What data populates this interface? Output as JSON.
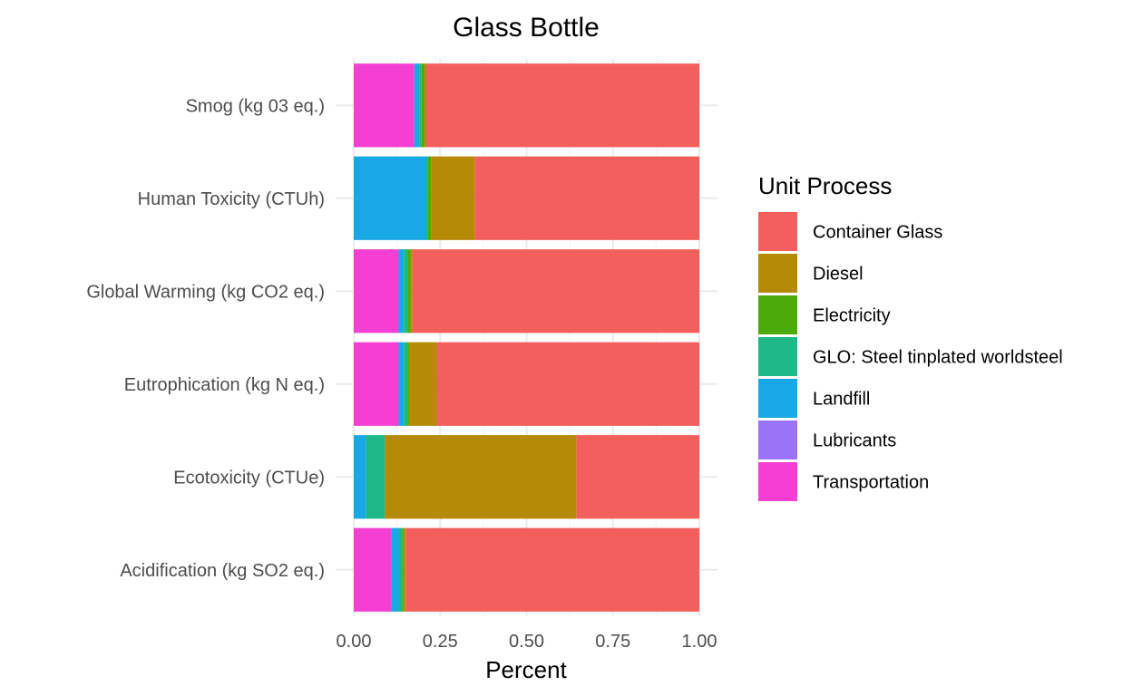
{
  "chart_data": {
    "type": "bar",
    "orientation": "horizontal",
    "stacked": true,
    "title": "Glass Bottle",
    "xlabel": "Percent",
    "ylabel": "",
    "xlim": [
      0,
      1
    ],
    "x_ticks": [
      "0.00",
      "0.25",
      "0.50",
      "0.75",
      "1.00"
    ],
    "x_tick_values": [
      0,
      0.25,
      0.5,
      0.75,
      1.0
    ],
    "grid": true,
    "categories": [
      "Smog (kg 03 eq.)",
      "Human Toxicity (CTUh)",
      "Global Warming (kg CO2 eq.)",
      "Eutrophication (kg N eq.)",
      "Ecotoxicity (CTUe)",
      "Acidification (kg SO2 eq.)"
    ],
    "stack_order": [
      "Transportation",
      "Lubricants",
      "Landfill",
      "GLO: Steel tinplated worldsteel",
      "Electricity",
      "Diesel",
      "Container Glass"
    ],
    "series": [
      {
        "name": "Container Glass",
        "color": "#F25F5C",
        "values": [
          0.79,
          0.65,
          0.83,
          0.76,
          0.355,
          0.85
        ]
      },
      {
        "name": "Diesel",
        "color": "#B58A07",
        "values": [
          0.005,
          0.125,
          0.005,
          0.08,
          0.555,
          0.005
        ]
      },
      {
        "name": "Electricity",
        "color": "#4DAA0B",
        "values": [
          0.01,
          0.01,
          0.01,
          0.005,
          0.0,
          0.005
        ]
      },
      {
        "name": "GLO: Steel tinplated worldsteel",
        "color": "#1DB788",
        "values": [
          0.005,
          0.005,
          0.01,
          0.01,
          0.055,
          0.01
        ]
      },
      {
        "name": "Landfill",
        "color": "#18A8E5",
        "values": [
          0.015,
          0.21,
          0.015,
          0.015,
          0.035,
          0.02
        ]
      },
      {
        "name": "Lubricants",
        "color": "#9B73F7",
        "values": [
          0.0,
          0.0,
          0.0,
          0.0,
          0.0,
          0.0
        ]
      },
      {
        "name": "Transportation",
        "color": "#F53FD3",
        "values": [
          0.175,
          0.0,
          0.13,
          0.13,
          0.0,
          0.11
        ]
      }
    ],
    "legend": {
      "title": "Unit Process",
      "placement": "right",
      "entries": [
        "Container Glass",
        "Diesel",
        "Electricity",
        "GLO: Steel tinplated worldsteel",
        "Landfill",
        "Lubricants",
        "Transportation"
      ]
    }
  }
}
